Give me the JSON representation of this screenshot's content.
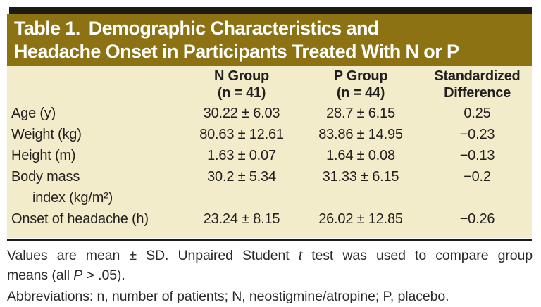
{
  "header": {
    "title_label": "Table 1.",
    "title_rest": "Demographic Characteristics and",
    "title_line2": "Headache Onset in Participants Treated With N or P"
  },
  "table": {
    "col_headers": [
      {
        "line1": "N Group",
        "line2": "(n = 41)"
      },
      {
        "line1": "P Group",
        "line2": "(n = 44)"
      },
      {
        "line1": "Standardized",
        "line2": "Difference"
      }
    ],
    "rows": [
      {
        "label": "Age (y)",
        "n": "30.22 ± 6.03",
        "p": "28.7 ± 6.15",
        "sd": "0.25"
      },
      {
        "label": "Weight (kg)",
        "n": "80.63 ± 12.61",
        "p": "83.86 ± 14.95",
        "sd": "−0.23"
      },
      {
        "label": "Height (m)",
        "n": "1.63 ± 0.07",
        "p": "1.64 ± 0.08",
        "sd": "−0.13"
      },
      {
        "label": "Body mass",
        "label2": "index (kg/m²)",
        "n": "30.2 ± 5.34",
        "p": "31.33 ± 6.15",
        "sd": "−0.2"
      },
      {
        "label": "Onset of headache (h)",
        "n": "23.24 ± 8.15",
        "p": "26.02 ± 12.85",
        "sd": "−0.26"
      }
    ]
  },
  "footnotes": {
    "note1_line1": [
      "Values are mean ± SD. Unpaired Student ",
      "t",
      " test was used to compare group"
    ],
    "note1_line2": [
      "means (all ",
      "P",
      " > .05)."
    ],
    "abbreviations": "Abbreviations: n, number of patients; N, neostigmine/atropine; P, placebo."
  },
  "colors": {
    "band_gold": "#8c7212",
    "bar_black": "#1e1b17",
    "body_beige": "#f2ecca",
    "text_dark": "#231f20",
    "title_white": "#ffffff"
  }
}
